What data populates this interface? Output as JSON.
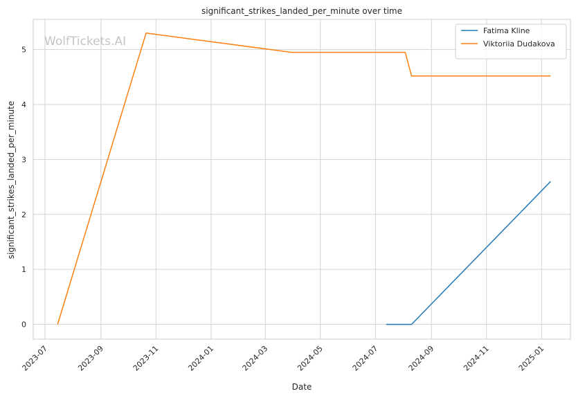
{
  "chart_data": {
    "type": "line",
    "title": "significant_strikes_landed_per_minute over time",
    "xlabel": "Date",
    "ylabel": "significant_strikes_landed_per_minute",
    "watermark": "WolfTickets.AI",
    "grid": true,
    "legend_position": "top-right",
    "xlim": [
      "2023-06-18",
      "2025-02-02"
    ],
    "ylim": [
      -0.27,
      5.55
    ],
    "x_ticks": [
      "2023-07",
      "2023-09",
      "2023-11",
      "2024-01",
      "2024-03",
      "2024-05",
      "2024-07",
      "2024-09",
      "2024-11",
      "2025-01"
    ],
    "x_tick_dates": [
      "2023-07-01",
      "2023-09-01",
      "2023-11-01",
      "2024-01-01",
      "2024-03-01",
      "2024-05-01",
      "2024-07-01",
      "2024-09-01",
      "2024-11-01",
      "2025-01-01"
    ],
    "y_ticks": [
      0,
      1,
      2,
      3,
      4,
      5
    ],
    "series": [
      {
        "name": "Fatima Kline",
        "color": "#1f77b4",
        "x": [
          "2024-07-13",
          "2024-08-10",
          "2025-01-11"
        ],
        "y": [
          0.0,
          0.0,
          2.6
        ]
      },
      {
        "name": "Viktoriia Dudakova",
        "color": "#ff7f0e",
        "x": [
          "2023-07-15",
          "2023-10-21",
          "2024-03-30",
          "2024-08-03",
          "2024-08-10",
          "2025-01-11"
        ],
        "y": [
          0.0,
          5.3,
          4.95,
          4.95,
          4.52,
          4.52
        ]
      }
    ]
  }
}
